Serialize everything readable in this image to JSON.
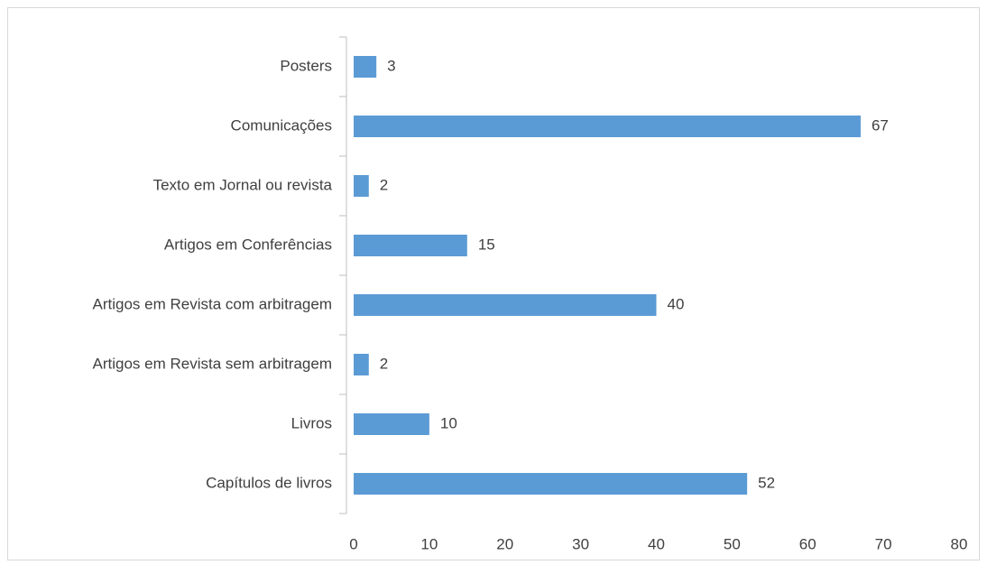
{
  "chart_data": {
    "type": "bar",
    "orientation": "horizontal",
    "categories": [
      "Posters",
      "Comunicações",
      "Texto em Jornal ou revista",
      "Artigos em Conferências",
      "Artigos em Revista com arbitragem",
      "Artigos em Revista sem arbitragem",
      "Livros",
      "Capítulos de livros"
    ],
    "values": [
      3,
      67,
      2,
      15,
      40,
      2,
      10,
      52
    ],
    "color": "#5b9bd5",
    "xlim": [
      0,
      80
    ],
    "xticks": [
      0,
      10,
      20,
      30,
      40,
      50,
      60,
      70,
      80
    ],
    "grid": false
  }
}
